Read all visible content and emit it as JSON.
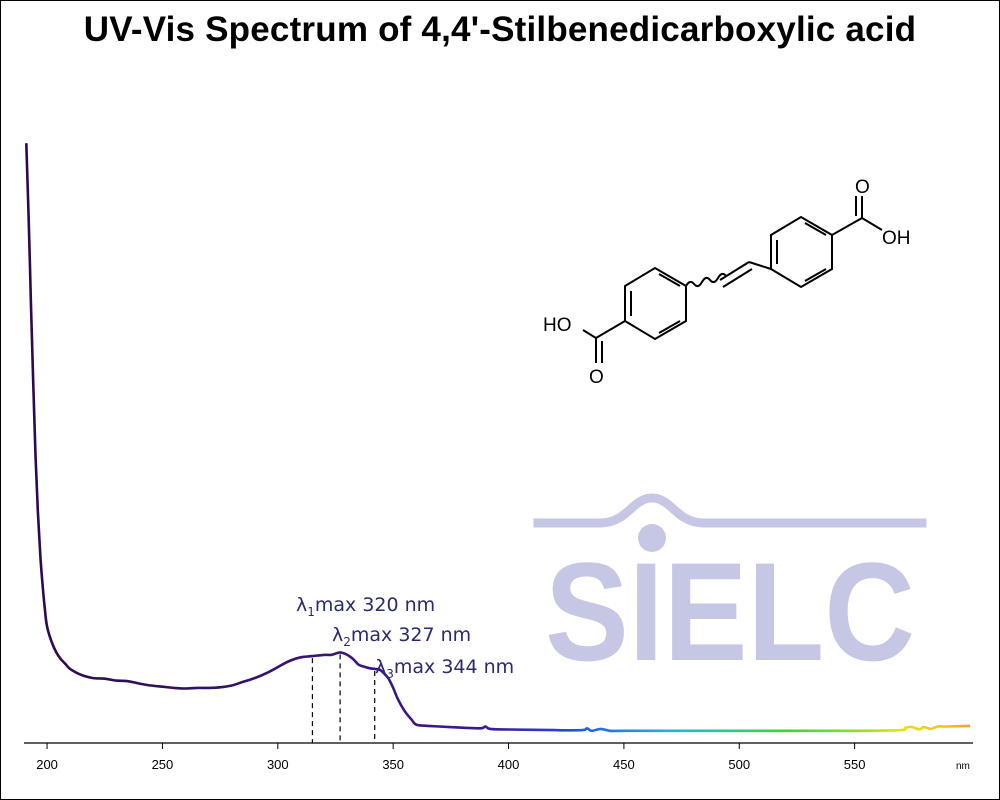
{
  "chart_data": {
    "type": "line",
    "title": "UV-Vis Spectrum of 4,4'-Stilbenedicarboxylic acid",
    "xlabel": "nm",
    "ylabel": "",
    "xlim": [
      190,
      600
    ],
    "ylim": [
      0,
      1.0
    ],
    "grid": false,
    "x_ticks": [
      200,
      250,
      300,
      350,
      400,
      450,
      500,
      550
    ],
    "series": [
      {
        "x": [
          191,
          192,
          193,
          194,
          195,
          196,
          197,
          198,
          199,
          200,
          202,
          204,
          206,
          208,
          210,
          215,
          220,
          225,
          230,
          235,
          240,
          245,
          250,
          255,
          260,
          265,
          270,
          275,
          280,
          285,
          290,
          295,
          300,
          305,
          310,
          315,
          320,
          323,
          325,
          327,
          329,
          331,
          333,
          335,
          338,
          340,
          342,
          344,
          346,
          348,
          350,
          352,
          355,
          358,
          360,
          365,
          370,
          380,
          388,
          390,
          392,
          400,
          420,
          432,
          434,
          436,
          440,
          444,
          450,
          500,
          550,
          570,
          572,
          575,
          578,
          580,
          583,
          586,
          590,
          600
        ],
        "y": [
          0.98,
          0.86,
          0.72,
          0.59,
          0.47,
          0.38,
          0.31,
          0.26,
          0.22,
          0.19,
          0.165,
          0.148,
          0.137,
          0.129,
          0.121,
          0.111,
          0.106,
          0.105,
          0.102,
          0.101,
          0.097,
          0.094,
          0.092,
          0.09,
          0.089,
          0.09,
          0.09,
          0.091,
          0.094,
          0.1,
          0.106,
          0.114,
          0.124,
          0.134,
          0.14,
          0.142,
          0.144,
          0.144,
          0.146,
          0.148,
          0.146,
          0.142,
          0.136,
          0.128,
          0.124,
          0.122,
          0.121,
          0.12,
          0.114,
          0.105,
          0.09,
          0.072,
          0.052,
          0.038,
          0.03,
          0.028,
          0.027,
          0.025,
          0.024,
          0.027,
          0.023,
          0.022,
          0.021,
          0.021,
          0.024,
          0.02,
          0.023,
          0.02,
          0.02,
          0.02,
          0.02,
          0.021,
          0.025,
          0.026,
          0.022,
          0.026,
          0.023,
          0.027,
          0.027,
          0.028
        ]
      }
    ],
    "annotations": [
      {
        "symbol": "λ",
        "sub": "1",
        "text": "max  320 nm",
        "x": 315
      },
      {
        "symbol": "λ",
        "sub": "2",
        "text": "max  327 nm",
        "x": 327
      },
      {
        "symbol": "λ",
        "sub": "3",
        "text": "max  344 nm",
        "x": 342
      }
    ],
    "spectrum_colors": [
      {
        "nm": 190,
        "color": "#2b0a4a"
      },
      {
        "nm": 390,
        "color": "#3d1a8c"
      },
      {
        "nm": 420,
        "color": "#2a3be0"
      },
      {
        "nm": 450,
        "color": "#1f88e8"
      },
      {
        "nm": 470,
        "color": "#19b7d8"
      },
      {
        "nm": 495,
        "color": "#1fcf86"
      },
      {
        "nm": 520,
        "color": "#2fd93a"
      },
      {
        "nm": 550,
        "color": "#8de01f"
      },
      {
        "nm": 570,
        "color": "#e4e21c"
      },
      {
        "nm": 590,
        "color": "#f5c01a"
      },
      {
        "nm": 600,
        "color": "#f2a21a"
      }
    ]
  },
  "molecule": {
    "labels": [
      "O",
      "OH",
      "HO",
      "O"
    ]
  },
  "logo": {
    "text": "SIELC",
    "color": "#c5c7e4"
  }
}
